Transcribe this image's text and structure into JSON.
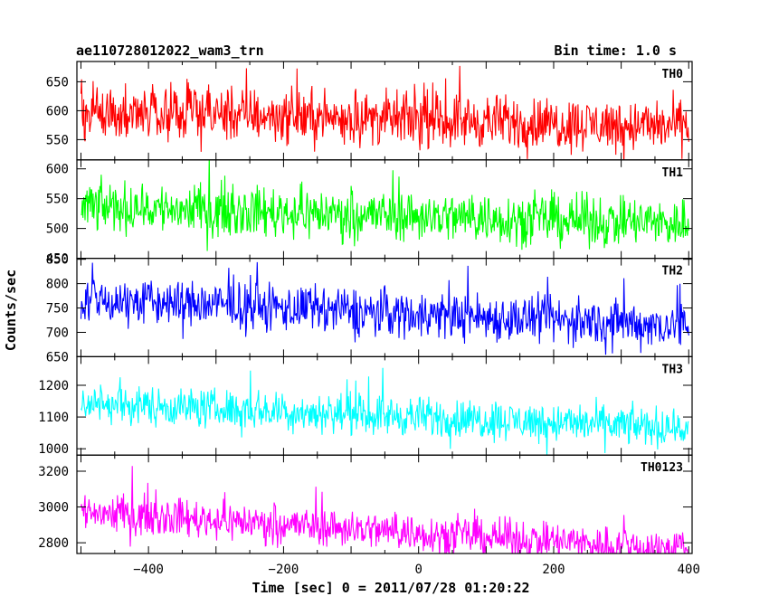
{
  "title_left": "ae110728012022_wam3_trn",
  "title_right": "Bin time: 1.0 s",
  "xlabel": "Time [sec] 0 = 2011/07/28 01:20:22",
  "ylabel": "Counts/sec",
  "chart_data": {
    "type": "line",
    "title": "ae110728012022_wam3_trn",
    "subtitle": "Bin time: 1.0 s",
    "xlabel": "Time [sec] 0 = 2011/07/28 01:20:22",
    "ylabel": "Counts/sec",
    "xlim": [
      -506,
      405
    ],
    "xticks": [
      -400,
      -200,
      0,
      200,
      400
    ],
    "x_start": -500,
    "x_end": 400,
    "bin": 1.0,
    "grid": false,
    "panels": [
      {
        "name": "TH0",
        "color": "#ff0000",
        "ylim": [
          515,
          685
        ],
        "yticks": [
          550,
          600,
          650
        ],
        "level_start": 600,
        "level_end": 572,
        "noise": 28,
        "spike": 55
      },
      {
        "name": "TH1",
        "color": "#00ff00",
        "ylim": [
          450,
          615
        ],
        "yticks": [
          450,
          500,
          550,
          600
        ],
        "level_start": 537,
        "level_end": 508,
        "noise": 26,
        "spike": 55
      },
      {
        "name": "TH2",
        "color": "#0000ff",
        "ylim": [
          650,
          852
        ],
        "yticks": [
          650,
          700,
          750,
          800,
          850
        ],
        "level_start": 768,
        "level_end": 713,
        "noise": 30,
        "spike": 75
      },
      {
        "name": "TH3",
        "color": "#00ffff",
        "ylim": [
          980,
          1290
        ],
        "yticks": [
          1000,
          1100,
          1200
        ],
        "level_start": 1145,
        "level_end": 1065,
        "noise": 38,
        "spike": 95
      },
      {
        "name": "TH0123",
        "color": "#ff00ff",
        "ylim": [
          2740,
          3290
        ],
        "yticks": [
          2800,
          3000,
          3200
        ],
        "level_start": 2975,
        "level_end": 2760,
        "noise": 65,
        "spike": 170
      }
    ]
  }
}
